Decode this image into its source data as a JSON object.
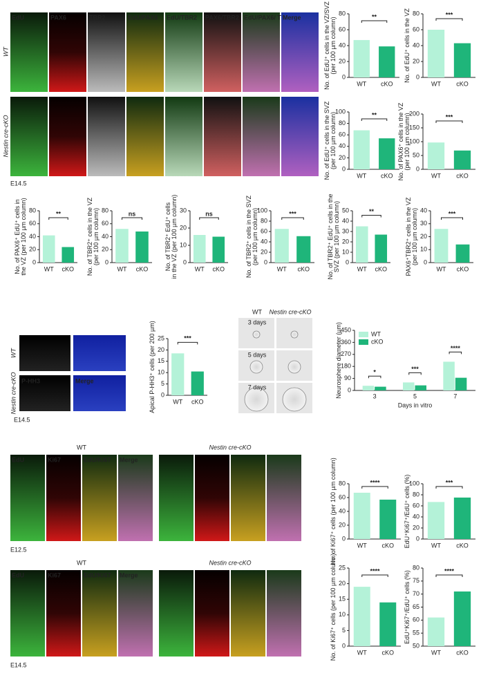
{
  "figure": {
    "row1": {
      "channels": [
        "EdU",
        "PAX6",
        "TBR2",
        "EdU/PAX6",
        "EdU/TBR2",
        "PAX6/TBR2",
        "EdU/PAX6/ TBR2",
        "Merge"
      ],
      "conditions": [
        "WT",
        "Nestin cre-cKO"
      ],
      "stage": "E14.5"
    },
    "phh3": {
      "channels": [
        "P-HH3",
        "Merge"
      ],
      "conditions": [
        "WT",
        "Nestin cre-cKO"
      ],
      "stage": "E14.5"
    },
    "sphere": {
      "columns": [
        "WT",
        "Nestin cre-cKO"
      ],
      "rows": [
        "3 days",
        "5 days",
        "7 days"
      ]
    },
    "ki67_e125": {
      "conditions": [
        "WT",
        "Nestin cre-cKO"
      ],
      "channels": [
        "EdU",
        "Ki67",
        "EdU/Ki67",
        "Merge"
      ],
      "stage": "E12.5"
    },
    "ki67_e145": {
      "conditions": [
        "WT",
        "Nestin cre-cKO"
      ],
      "channels": [
        "EdU",
        "Ki67",
        "EdU/Ki67",
        "Merge"
      ],
      "stage": "E14.5"
    }
  },
  "chart_data": [
    {
      "type": "bar",
      "ylabel": [
        "No. of EdU⁺ cells in the VZ/SVZ",
        "(per 100 µm column)"
      ],
      "categories": [
        "WT",
        "cKO"
      ],
      "values": [
        47,
        39
      ],
      "colors": [
        "#b4f2d8",
        "#1fb57a"
      ],
      "ylim": [
        0,
        80
      ],
      "yticks": [
        0,
        20,
        40,
        60,
        80
      ],
      "annotation": "**"
    },
    {
      "type": "bar",
      "ylabel": [
        "No. of EdU⁺ cells in the VZ"
      ],
      "categories": [
        "WT",
        "cKO"
      ],
      "values": [
        60,
        43
      ],
      "colors": [
        "#b4f2d8",
        "#1fb57a"
      ],
      "ylim": [
        0,
        80
      ],
      "yticks": [
        0,
        20,
        40,
        60,
        80
      ],
      "annotation": "***"
    },
    {
      "type": "bar",
      "ylabel": [
        "No. of EdU⁺ cells in the SVZ",
        "(per 100 µm column)"
      ],
      "categories": [
        "WT",
        "cKO"
      ],
      "values": [
        68,
        54
      ],
      "colors": [
        "#b4f2d8",
        "#1fb57a"
      ],
      "ylim": [
        0,
        100
      ],
      "yticks": [
        0,
        20,
        40,
        60,
        80,
        100
      ],
      "annotation": "**"
    },
    {
      "type": "bar",
      "ylabel": [
        "No. of PAX6⁺ cells in the VZ",
        "(per 100 µm column)"
      ],
      "categories": [
        "WT",
        "cKO"
      ],
      "values": [
        97,
        68
      ],
      "colors": [
        "#b4f2d8",
        "#1fb57a"
      ],
      "ylim": [
        0,
        200
      ],
      "yticks": [
        0,
        50,
        100,
        150,
        200
      ],
      "annotation": "***"
    },
    {
      "type": "bar",
      "ylabel": [
        "No. of PAX6⁺ EdU⁺ cells in",
        "the VZ (per 100 µm column)"
      ],
      "categories": [
        "WT",
        "cKO"
      ],
      "values": [
        42,
        24
      ],
      "colors": [
        "#b4f2d8",
        "#1fb57a"
      ],
      "ylim": [
        0,
        80
      ],
      "yticks": [
        0,
        20,
        40,
        60,
        80
      ],
      "annotation": "**"
    },
    {
      "type": "bar",
      "ylabel": [
        "No. of TBR2⁺ cells in the VZ",
        "(per 100 µm column)"
      ],
      "categories": [
        "WT",
        "cKO"
      ],
      "values": [
        52,
        48
      ],
      "colors": [
        "#b4f2d8",
        "#1fb57a"
      ],
      "ylim": [
        0,
        80
      ],
      "yticks": [
        0,
        20,
        40,
        60,
        80
      ],
      "annotation": "ns"
    },
    {
      "type": "bar",
      "ylabel": [
        "No. of TBR2⁺ EdU⁺ cells",
        "in the VZ (per 100 µm column)"
      ],
      "categories": [
        "WT",
        "cKO"
      ],
      "values": [
        16,
        15
      ],
      "colors": [
        "#b4f2d8",
        "#1fb57a"
      ],
      "ylim": [
        0,
        30
      ],
      "yticks": [
        0,
        10,
        20,
        30
      ],
      "annotation": "ns"
    },
    {
      "type": "bar",
      "ylabel": [
        "No. of TBR2⁺ cells in the SVZ",
        "(per 100 µm column)"
      ],
      "categories": [
        "WT",
        "cKO"
      ],
      "values": [
        65,
        51
      ],
      "colors": [
        "#b4f2d8",
        "#1fb57a"
      ],
      "ylim": [
        0,
        100
      ],
      "yticks": [
        0,
        20,
        40,
        60,
        80,
        100
      ],
      "annotation": "***"
    },
    {
      "type": "bar",
      "ylabel": [
        "No. of TBR2⁺ EdU⁺ cells in the",
        "SVZ (per 100 µm column)"
      ],
      "categories": [
        "WT",
        "cKO"
      ],
      "values": [
        35,
        27
      ],
      "colors": [
        "#b4f2d8",
        "#1fb57a"
      ],
      "ylim": [
        0,
        50
      ],
      "yticks": [
        0,
        10,
        20,
        30,
        40,
        50
      ],
      "annotation": "**"
    },
    {
      "type": "bar",
      "ylabel": [
        "PAX6⁺TBR2⁺ cells in the VZ",
        "(per 100 µm column)"
      ],
      "categories": [
        "WT",
        "cKO"
      ],
      "values": [
        26,
        14
      ],
      "colors": [
        "#b4f2d8",
        "#1fb57a"
      ],
      "ylim": [
        0,
        40
      ],
      "yticks": [
        0,
        10,
        20,
        30,
        40
      ],
      "annotation": "***"
    },
    {
      "type": "bar",
      "ylabel": [
        "Apical P-HH3⁺ cells (per 200 µm)"
      ],
      "categories": [
        "WT",
        "cKO"
      ],
      "values": [
        18.5,
        10.5
      ],
      "colors": [
        "#b4f2d8",
        "#1fb57a"
      ],
      "ylim": [
        0,
        25
      ],
      "yticks": [
        0,
        5,
        10,
        15,
        20,
        25
      ],
      "annotation": "***"
    },
    {
      "type": "grouped_bar",
      "ylabel": [
        "Neurosphere diameter (µm)"
      ],
      "xlabel": "Days in vitro",
      "categories": [
        "3",
        "5",
        "7"
      ],
      "series": [
        {
          "name": "WT",
          "color": "#b4f2d8",
          "values": [
            35,
            60,
            215
          ]
        },
        {
          "name": "cKO",
          "color": "#1fb57a",
          "values": [
            28,
            38,
            95
          ]
        }
      ],
      "ylim": [
        0,
        450
      ],
      "yticks": [
        0,
        90,
        180,
        270,
        360,
        450
      ],
      "annotations": [
        "*",
        "***",
        "****"
      ],
      "legend": "upper left"
    },
    {
      "type": "bar",
      "ylabel": [
        "No. of Ki67⁺ cells (per 100 µm column)"
      ],
      "categories": [
        "WT",
        "cKO"
      ],
      "values": [
        67,
        57
      ],
      "colors": [
        "#b4f2d8",
        "#1fb57a"
      ],
      "ylim": [
        0,
        80
      ],
      "yticks": [
        0,
        20,
        40,
        60,
        80
      ],
      "annotation": "****"
    },
    {
      "type": "bar",
      "ylabel": [
        "EdU⁺Ki67⁺/EdU⁺ cells (%)"
      ],
      "categories": [
        "WT",
        "cKO"
      ],
      "values": [
        67,
        75
      ],
      "colors": [
        "#b4f2d8",
        "#1fb57a"
      ],
      "ylim": [
        0,
        100
      ],
      "yticks": [
        0,
        20,
        40,
        60,
        80,
        100
      ],
      "annotation": "***"
    },
    {
      "type": "bar",
      "ylabel": [
        "No. of Ki67⁺ cells (per 100 µm column)"
      ],
      "categories": [
        "WT",
        "cKO"
      ],
      "values": [
        19,
        14
      ],
      "colors": [
        "#b4f2d8",
        "#1fb57a"
      ],
      "ylim": [
        0,
        25
      ],
      "yticks": [
        0,
        5,
        10,
        15,
        20,
        25
      ],
      "annotation": "****"
    },
    {
      "type": "bar",
      "ylabel": [
        "EdU⁺Ki67⁺/EdU⁺ cells (%)"
      ],
      "categories": [
        "WT",
        "cKO"
      ],
      "values": [
        61,
        71
      ],
      "colors": [
        "#b4f2d8",
        "#1fb57a"
      ],
      "ylim": [
        50,
        80
      ],
      "yticks": [
        50,
        55,
        60,
        65,
        70,
        75,
        80
      ],
      "annotation": "****"
    }
  ]
}
